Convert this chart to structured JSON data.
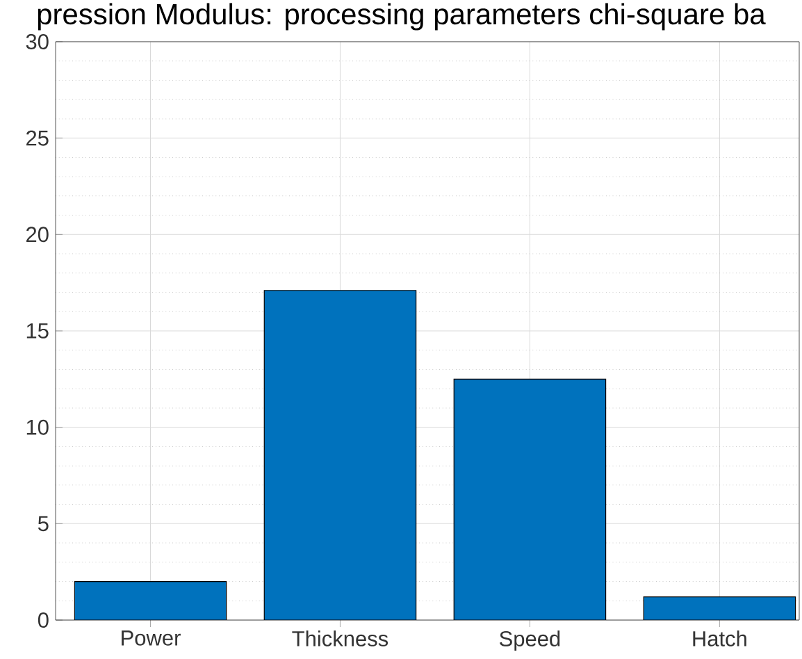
{
  "chart_data": {
    "type": "bar",
    "title": "pression Modulus: processing parameters chi-square ba",
    "categories": [
      "Power",
      "Thickness",
      "Speed",
      "Hatch"
    ],
    "values": [
      2.0,
      17.1,
      12.5,
      1.2
    ],
    "color": "#0072bd",
    "ylim": [
      0,
      30
    ],
    "yticks": [
      0,
      5,
      10,
      15,
      20,
      25,
      30
    ],
    "grid": true
  }
}
